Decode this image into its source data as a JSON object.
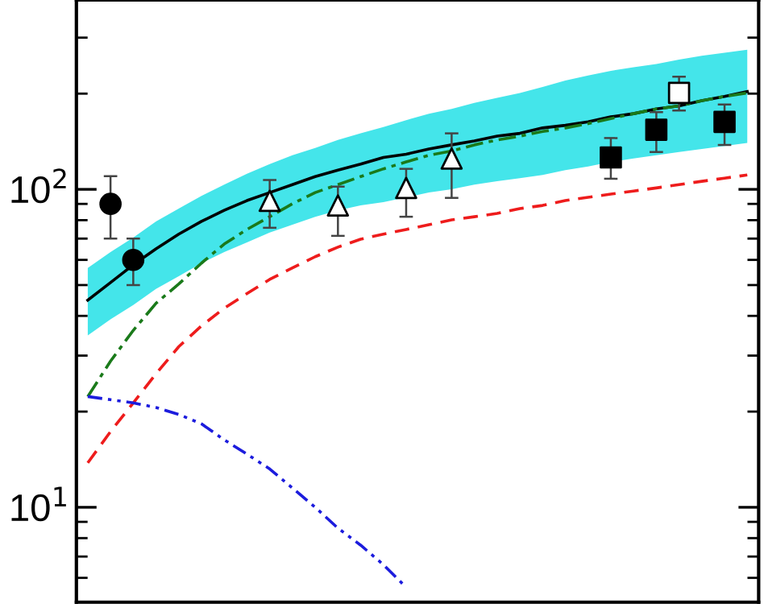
{
  "chart_data": {
    "type": "line",
    "categories": [
      null,
      null,
      null,
      null,
      null,
      null,
      null,
      null,
      null,
      null,
      null,
      null,
      null,
      null,
      null,
      null,
      null,
      null,
      null,
      null,
      null,
      null,
      null,
      null,
      null,
      null,
      null,
      null,
      null,
      null
    ],
    "log": "y",
    "ylim": [
      5.03,
      394
    ],
    "yticks": [
      {
        "value": 6,
        "label": null
      },
      {
        "value": 7,
        "label": null
      },
      {
        "value": 8,
        "label": null
      },
      {
        "value": 9,
        "label": null
      },
      {
        "value": 10,
        "label": "10$^{1}$"
      },
      {
        "value": 20,
        "label": null
      },
      {
        "value": 30,
        "label": null
      },
      {
        "value": 40,
        "label": null
      },
      {
        "value": 50,
        "label": null
      },
      {
        "value": 60,
        "label": null
      },
      {
        "value": 70,
        "label": null
      },
      {
        "value": 80,
        "label": null
      },
      {
        "value": 90,
        "label": null
      },
      {
        "value": 100,
        "label": "10$^{2}$"
      },
      {
        "value": 200,
        "label": null
      },
      {
        "value": 300,
        "label": null
      }
    ],
    "grid": false,
    "series": [
      {
        "color": "#000000",
        "line_style": "solid",
        "lower": [
          34.7,
          39.0,
          43.3,
          48.6,
          53.3,
          58.6,
          63.5,
          68.1,
          73.1,
          77.4,
          82.0,
          85.9,
          89.0,
          91.1,
          94.4,
          97.7,
          100,
          103.5,
          106,
          108.4,
          111,
          115,
          118,
          122,
          125,
          128,
          131,
          134,
          137,
          140
        ],
        "upper": [
          56.6,
          63.5,
          70.5,
          79.3,
          87.0,
          95.4,
          103.5,
          112,
          120,
          128,
          135,
          143,
          150,
          157,
          165,
          173,
          179,
          187,
          194,
          201,
          210,
          220,
          228,
          236,
          242,
          248,
          256,
          263,
          269,
          275
        ],
        "values": [
          44.8,
          50.9,
          57.9,
          65.0,
          72.3,
          79.3,
          85.9,
          92.2,
          97.7,
          103.5,
          109.7,
          115,
          120,
          126,
          129,
          134,
          138,
          142,
          147,
          150,
          156,
          159,
          163,
          169,
          173,
          179,
          183,
          190,
          196,
          203
        ]
      },
      {
        "color": "#1a7a1a",
        "line_style": "dashdot",
        "values": [
          22.3,
          28.8,
          36.0,
          43.8,
          50.4,
          58.6,
          67.3,
          74.8,
          82.0,
          90.1,
          97.7,
          103.5,
          109.7,
          116,
          122,
          128,
          132,
          138,
          143,
          147,
          152,
          156,
          161,
          167,
          173,
          179,
          183,
          190,
          196,
          201
        ]
      },
      {
        "color": "#ee1c1c",
        "line_style": "dashed",
        "values": [
          13.8,
          17.3,
          21.3,
          26.3,
          32.0,
          37.2,
          42.3,
          47.0,
          52.1,
          56.6,
          61.4,
          65.8,
          69.7,
          72.3,
          74.8,
          77.4,
          80.2,
          82.0,
          84.0,
          87.0,
          89.0,
          92.2,
          94.4,
          96.6,
          98.8,
          101,
          103.5,
          106,
          108.4,
          111
        ]
      },
      {
        "color": "#1c1cdd",
        "line_style": "dashdotdot",
        "values": [
          22.3,
          21.8,
          21.3,
          20.6,
          19.6,
          18.3,
          16.3,
          14.7,
          13.2,
          11.5,
          10.0,
          8.6,
          7.6,
          6.6,
          5.6,
          null,
          null,
          null,
          null,
          null,
          null,
          null,
          null,
          null,
          null,
          null,
          null,
          null,
          null,
          null
        ]
      },
      {
        "type": "scatter",
        "marker": "circle",
        "color": "#000000",
        "values": [
          null,
          90,
          60,
          null,
          null,
          null,
          null,
          null,
          null,
          null,
          null,
          null,
          null,
          null,
          null,
          null,
          null,
          null,
          null,
          null,
          null,
          null,
          null,
          null,
          null,
          null,
          null,
          null,
          null,
          null
        ],
        "errors": [
          null,
          [
            70,
            110
          ],
          [
            50,
            70
          ],
          null,
          null,
          null,
          null,
          null,
          null,
          null,
          null,
          null,
          null,
          null,
          null,
          null,
          null,
          null,
          null,
          null,
          null,
          null,
          null,
          null,
          null,
          null,
          null,
          null,
          null,
          null
        ]
      },
      {
        "type": "scatter",
        "marker": "triangle",
        "color": "#ffffff",
        "values": [
          null,
          null,
          null,
          null,
          null,
          null,
          null,
          null,
          92,
          null,
          null,
          89,
          null,
          null,
          101,
          null,
          125,
          null,
          null,
          null,
          null,
          null,
          null,
          null,
          null,
          null,
          null,
          null,
          null,
          null
        ],
        "errors": [
          null,
          null,
          null,
          null,
          null,
          null,
          null,
          null,
          [
            75.7,
            107
          ],
          null,
          null,
          [
            71.4,
            102
          ],
          null,
          null,
          [
            82,
            116
          ],
          null,
          [
            94,
            150
          ],
          null,
          null,
          null,
          null,
          null,
          null,
          null,
          null,
          null,
          null,
          null,
          null,
          null
        ]
      },
      {
        "type": "scatter",
        "marker": "square",
        "color": "#000000",
        "values": [
          null,
          null,
          null,
          null,
          null,
          null,
          null,
          null,
          null,
          null,
          null,
          null,
          null,
          null,
          null,
          null,
          null,
          null,
          null,
          null,
          null,
          null,
          null,
          126,
          null,
          154,
          null,
          null,
          163,
          null
        ],
        "errors": [
          null,
          null,
          null,
          null,
          null,
          null,
          null,
          null,
          null,
          null,
          null,
          null,
          null,
          null,
          null,
          null,
          null,
          null,
          null,
          null,
          null,
          null,
          null,
          [
            108,
            145
          ],
          null,
          [
            131,
            175
          ],
          null,
          null,
          [
            138,
            185
          ],
          null
        ]
      },
      {
        "type": "scatter",
        "marker": "square",
        "color": "#ffffff",
        "values": [
          null,
          null,
          null,
          null,
          null,
          null,
          null,
          null,
          null,
          null,
          null,
          null,
          null,
          null,
          null,
          null,
          null,
          null,
          null,
          null,
          null,
          null,
          null,
          null,
          null,
          null,
          201,
          null,
          null,
          null
        ],
        "errors": [
          null,
          null,
          null,
          null,
          null,
          null,
          null,
          null,
          null,
          null,
          null,
          null,
          null,
          null,
          null,
          null,
          null,
          null,
          null,
          null,
          null,
          null,
          null,
          null,
          null,
          null,
          [
            177,
            226
          ],
          null,
          null,
          null
        ]
      }
    ]
  }
}
